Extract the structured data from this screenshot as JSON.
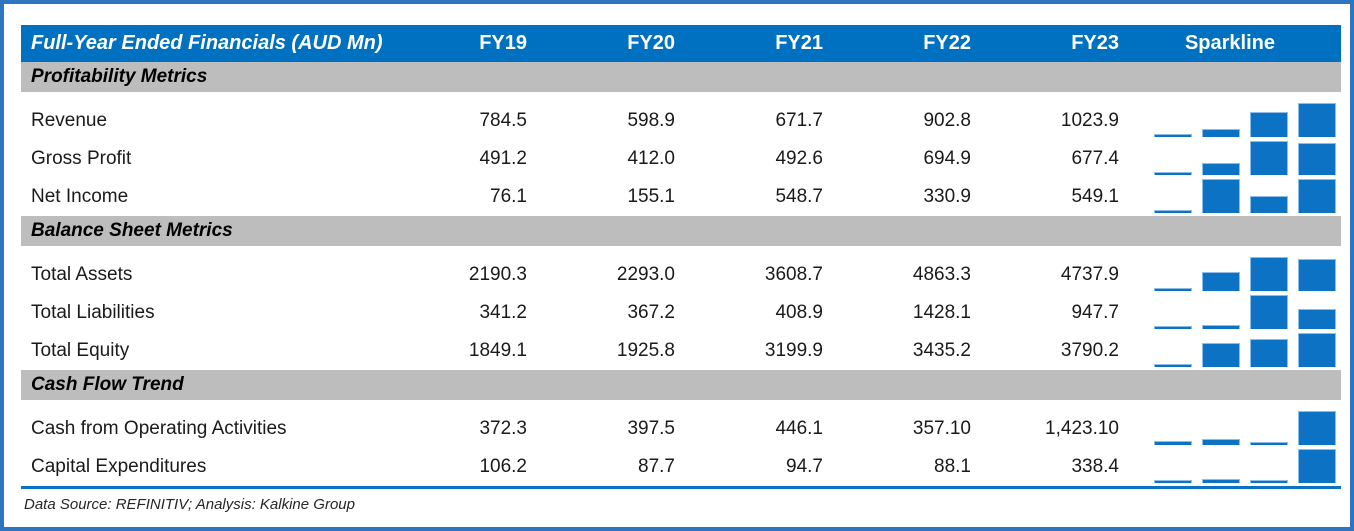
{
  "chart_data": {
    "type": "table",
    "title": "Full-Year Ended Financials (AUD Mn)",
    "year_columns": [
      "FY19",
      "FY20",
      "FY21",
      "FY22",
      "FY23"
    ],
    "sparkline_column": "Sparkline",
    "sparkline": {
      "type": "bar",
      "x": [
        "FY20",
        "FY21",
        "FY22",
        "FY23"
      ],
      "scaling": "per-row column sparkline: row minimum at baseline, row maximum at full height"
    },
    "sections": [
      {
        "title": "Profitability Metrics",
        "rows": [
          {
            "label": "Revenue",
            "display": [
              "784.5",
              "598.9",
              "671.7",
              "902.8",
              "1023.9"
            ],
            "values": [
              784.5,
              598.9,
              671.7,
              902.8,
              1023.9
            ]
          },
          {
            "label": "Gross Profit",
            "display": [
              "491.2",
              "412.0",
              "492.6",
              "694.9",
              "677.4"
            ],
            "values": [
              491.2,
              412.0,
              492.6,
              694.9,
              677.4
            ]
          },
          {
            "label": "Net Income",
            "display": [
              "76.1",
              "155.1",
              "548.7",
              "330.9",
              "549.1"
            ],
            "values": [
              76.1,
              155.1,
              548.7,
              330.9,
              549.1
            ]
          }
        ]
      },
      {
        "title": "Balance Sheet Metrics",
        "rows": [
          {
            "label": "Total Assets",
            "display": [
              "2190.3",
              "2293.0",
              "3608.7",
              "4863.3",
              "4737.9"
            ],
            "values": [
              2190.3,
              2293.0,
              3608.7,
              4863.3,
              4737.9
            ]
          },
          {
            "label": "Total Liabilities",
            "display": [
              "341.2",
              "367.2",
              "408.9",
              "1428.1",
              "947.7"
            ],
            "values": [
              341.2,
              367.2,
              408.9,
              1428.1,
              947.7
            ]
          },
          {
            "label": "Total Equity",
            "display": [
              "1849.1",
              "1925.8",
              "3199.9",
              "3435.2",
              "3790.2"
            ],
            "values": [
              1849.1,
              1925.8,
              3199.9,
              3435.2,
              3790.2
            ]
          }
        ]
      },
      {
        "title": "Cash Flow Trend",
        "rows": [
          {
            "label": "Cash from Operating Activities",
            "display": [
              "372.3",
              "397.5",
              "446.1",
              "357.10",
              "1,423.10"
            ],
            "values": [
              372.3,
              397.5,
              446.1,
              357.1,
              1423.1
            ]
          },
          {
            "label": "Capital Expenditures",
            "display": [
              "106.2",
              "87.7",
              "94.7",
              "88.1",
              "338.4"
            ],
            "values": [
              106.2,
              87.7,
              94.7,
              88.1,
              338.4
            ]
          }
        ]
      }
    ],
    "footnote": "Data Source: REFINITIV; Analysis: Kalkine Group"
  },
  "colors": {
    "frame": "#2e74c0",
    "header_bg": "#0070c0",
    "header_text": "#ffffff",
    "section_bg": "#bdbdbd",
    "bar_fill": "#0b72c4",
    "bar_edge": "#8fbce6",
    "bottom_rule": "#0b72c4",
    "text": "#1a1a1a",
    "footnote_text": "#262626"
  }
}
